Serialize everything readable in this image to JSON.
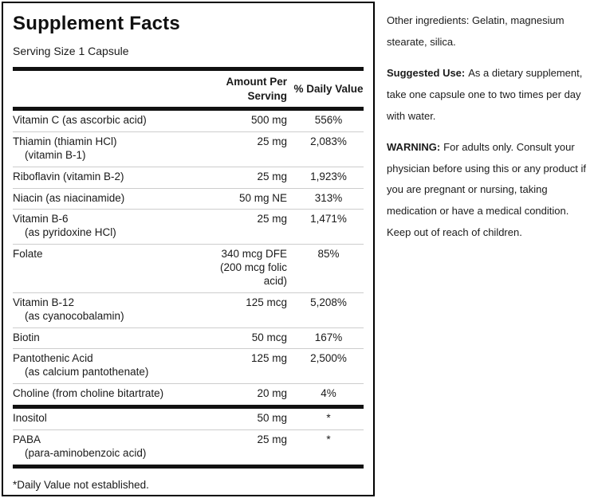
{
  "colors": {
    "text": "#1a1a1a",
    "border": "#000000",
    "divider": "#cdcdcd"
  },
  "panel": {
    "title": "Supplement Facts",
    "serving_size": "Serving Size 1 Capsule",
    "columns": {
      "amount": "Amount Per\nServing",
      "dv": "% Daily Value"
    },
    "rows": [
      {
        "name": "Vitamin C (as ascorbic acid)",
        "sub": "",
        "amount": "500 mg",
        "dv": "556%"
      },
      {
        "name": "Thiamin (thiamin HCl)",
        "sub": "(vitamin B-1)",
        "amount": "25 mg",
        "dv": "2,083%"
      },
      {
        "name": "Riboflavin (vitamin B-2)",
        "sub": "",
        "amount": "25 mg",
        "dv": "1,923%"
      },
      {
        "name": "Niacin (as niacinamide)",
        "sub": "",
        "amount": "50 mg NE",
        "dv": "313%"
      },
      {
        "name": "Vitamin B-6",
        "sub": "(as pyridoxine HCl)",
        "amount": "25 mg",
        "dv": "1,471%"
      },
      {
        "name": "Folate",
        "sub": "",
        "amount": "340 mcg DFE\n(200 mcg folic\nacid)",
        "dv": "85%"
      },
      {
        "name": "Vitamin B-12",
        "sub": "(as cyanocobalamin)",
        "amount": "125 mcg",
        "dv": "5,208%"
      },
      {
        "name": "Biotin",
        "sub": "",
        "amount": "50 mcg",
        "dv": "167%"
      },
      {
        "name": "Pantothenic Acid",
        "sub": "(as calcium pantothenate)",
        "amount": "125 mg",
        "dv": "2,500%"
      },
      {
        "name": "Choline (from choline bitartrate)",
        "sub": "",
        "amount": "20 mg",
        "dv": "4%"
      },
      {
        "name": "Inositol",
        "sub": "",
        "amount": "50 mg",
        "dv": "*"
      },
      {
        "name": "PABA",
        "sub": "(para-aminobenzoic acid)",
        "amount": "25 mg",
        "dv": "*"
      }
    ],
    "footnote": "*Daily Value not established."
  },
  "side": {
    "other_ingredients": "Other ingredients: Gelatin, magnesium stearate, silica.",
    "suggested_use_label": "Suggested Use:",
    "suggested_use_text": "As a dietary supplement, take one capsule one to two times per day with water.",
    "warning_label": "WARNING:",
    "warning_text": "For adults only. Consult your physician before using this or any product if you are pregnant or nursing, taking medication or have a medical condition. Keep out of reach of children."
  }
}
